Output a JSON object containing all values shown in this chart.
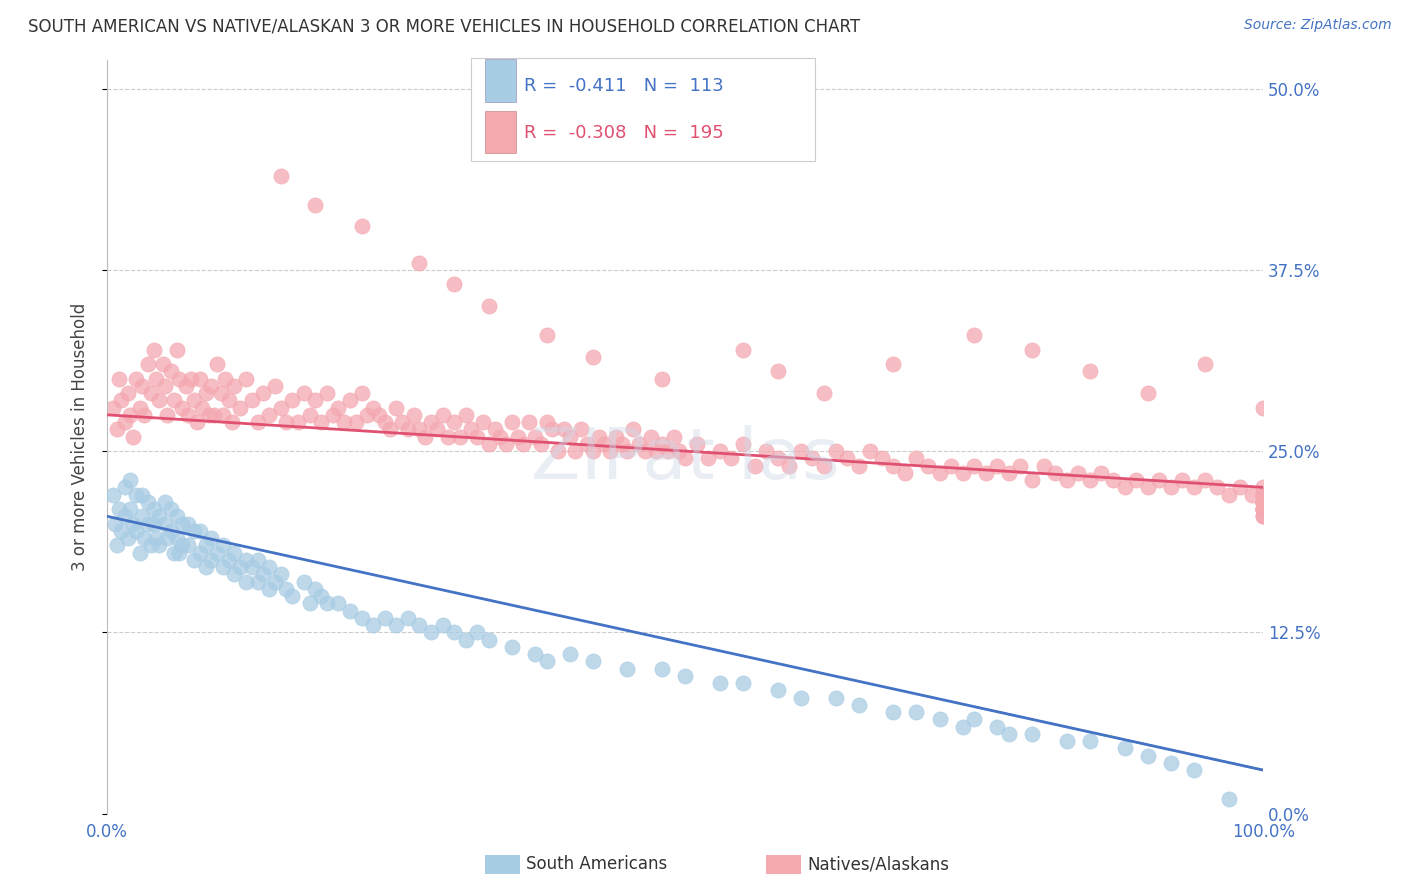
{
  "title": "SOUTH AMERICAN VS NATIVE/ALASKAN 3 OR MORE VEHICLES IN HOUSEHOLD CORRELATION CHART",
  "source": "Source: ZipAtlas.com",
  "ylabel": "3 or more Vehicles in Household",
  "ytick_values": [
    0.0,
    12.5,
    25.0,
    37.5,
    50.0
  ],
  "xlim": [
    0.0,
    100.0
  ],
  "ylim": [
    0.0,
    52.0
  ],
  "legend_blue_r": "-0.411",
  "legend_blue_n": "113",
  "legend_pink_r": "-0.308",
  "legend_pink_n": "195",
  "legend_label_blue": "South Americans",
  "legend_label_pink": "Natives/Alaskans",
  "color_blue": "#a8cce4",
  "color_pink": "#f4a8b0",
  "color_blue_line": "#4472c4",
  "color_pink_line": "#e05070",
  "blue_line_start_y": 20.5,
  "blue_line_end_y": 3.0,
  "pink_line_start_y": 27.5,
  "pink_line_end_y": 22.5,
  "blue_x": [
    0.5,
    0.7,
    0.8,
    1.0,
    1.2,
    1.5,
    1.5,
    1.8,
    2.0,
    2.0,
    2.2,
    2.5,
    2.5,
    2.8,
    3.0,
    3.0,
    3.2,
    3.5,
    3.5,
    3.8,
    4.0,
    4.0,
    4.2,
    4.5,
    4.5,
    5.0,
    5.0,
    5.2,
    5.5,
    5.5,
    5.8,
    6.0,
    6.0,
    6.2,
    6.5,
    6.5,
    7.0,
    7.0,
    7.5,
    7.5,
    8.0,
    8.0,
    8.5,
    8.5,
    9.0,
    9.0,
    9.5,
    10.0,
    10.0,
    10.5,
    11.0,
    11.0,
    11.5,
    12.0,
    12.0,
    12.5,
    13.0,
    13.0,
    13.5,
    14.0,
    14.0,
    14.5,
    15.0,
    15.5,
    16.0,
    17.0,
    17.5,
    18.0,
    18.5,
    19.0,
    20.0,
    21.0,
    22.0,
    23.0,
    24.0,
    25.0,
    26.0,
    27.0,
    28.0,
    29.0,
    30.0,
    31.0,
    32.0,
    33.0,
    35.0,
    37.0,
    38.0,
    40.0,
    42.0,
    45.0,
    48.0,
    50.0,
    53.0,
    55.0,
    58.0,
    60.0,
    63.0,
    65.0,
    68.0,
    70.0,
    72.0,
    74.0,
    75.0,
    77.0,
    78.0,
    80.0,
    83.0,
    85.0,
    88.0,
    90.0,
    92.0,
    94.0,
    97.0
  ],
  "blue_y": [
    22.0,
    20.0,
    18.5,
    21.0,
    19.5,
    22.5,
    20.5,
    19.0,
    23.0,
    21.0,
    20.0,
    22.0,
    19.5,
    18.0,
    22.0,
    20.5,
    19.0,
    21.5,
    20.0,
    18.5,
    21.0,
    20.0,
    19.0,
    20.5,
    18.5,
    21.5,
    20.0,
    19.0,
    21.0,
    19.5,
    18.0,
    20.5,
    19.0,
    18.0,
    20.0,
    18.5,
    20.0,
    18.5,
    19.5,
    17.5,
    19.5,
    18.0,
    18.5,
    17.0,
    19.0,
    17.5,
    18.0,
    18.5,
    17.0,
    17.5,
    18.0,
    16.5,
    17.0,
    17.5,
    16.0,
    17.0,
    17.5,
    16.0,
    16.5,
    17.0,
    15.5,
    16.0,
    16.5,
    15.5,
    15.0,
    16.0,
    14.5,
    15.5,
    15.0,
    14.5,
    14.5,
    14.0,
    13.5,
    13.0,
    13.5,
    13.0,
    13.5,
    13.0,
    12.5,
    13.0,
    12.5,
    12.0,
    12.5,
    12.0,
    11.5,
    11.0,
    10.5,
    11.0,
    10.5,
    10.0,
    10.0,
    9.5,
    9.0,
    9.0,
    8.5,
    8.0,
    8.0,
    7.5,
    7.0,
    7.0,
    6.5,
    6.0,
    6.5,
    6.0,
    5.5,
    5.5,
    5.0,
    5.0,
    4.5,
    4.0,
    3.5,
    3.0,
    1.0
  ],
  "pink_x": [
    0.5,
    0.8,
    1.0,
    1.2,
    1.5,
    1.8,
    2.0,
    2.2,
    2.5,
    2.8,
    3.0,
    3.2,
    3.5,
    3.8,
    4.0,
    4.2,
    4.5,
    4.8,
    5.0,
    5.2,
    5.5,
    5.8,
    6.0,
    6.2,
    6.5,
    6.8,
    7.0,
    7.2,
    7.5,
    7.8,
    8.0,
    8.2,
    8.5,
    8.8,
    9.0,
    9.2,
    9.5,
    9.8,
    10.0,
    10.2,
    10.5,
    10.8,
    11.0,
    11.5,
    12.0,
    12.5,
    13.0,
    13.5,
    14.0,
    14.5,
    15.0,
    15.5,
    16.0,
    16.5,
    17.0,
    17.5,
    18.0,
    18.5,
    19.0,
    19.5,
    20.0,
    20.5,
    21.0,
    21.5,
    22.0,
    22.5,
    23.0,
    23.5,
    24.0,
    24.5,
    25.0,
    25.5,
    26.0,
    26.5,
    27.0,
    27.5,
    28.0,
    28.5,
    29.0,
    29.5,
    30.0,
    30.5,
    31.0,
    31.5,
    32.0,
    32.5,
    33.0,
    33.5,
    34.0,
    34.5,
    35.0,
    35.5,
    36.0,
    36.5,
    37.0,
    37.5,
    38.0,
    38.5,
    39.0,
    39.5,
    40.0,
    40.5,
    41.0,
    41.5,
    42.0,
    42.5,
    43.0,
    43.5,
    44.0,
    44.5,
    45.0,
    45.5,
    46.0,
    46.5,
    47.0,
    47.5,
    48.0,
    48.5,
    49.0,
    49.5,
    50.0,
    51.0,
    52.0,
    53.0,
    54.0,
    55.0,
    56.0,
    57.0,
    58.0,
    59.0,
    60.0,
    61.0,
    62.0,
    63.0,
    64.0,
    65.0,
    66.0,
    67.0,
    68.0,
    69.0,
    70.0,
    71.0,
    72.0,
    73.0,
    74.0,
    75.0,
    76.0,
    77.0,
    78.0,
    79.0,
    80.0,
    81.0,
    82.0,
    83.0,
    84.0,
    85.0,
    86.0,
    87.0,
    88.0,
    89.0,
    90.0,
    91.0,
    92.0,
    93.0,
    94.0,
    95.0,
    96.0,
    97.0,
    98.0,
    99.0,
    100.0,
    100.5,
    101.0,
    101.5,
    102.0,
    102.5,
    103.0,
    103.5,
    104.0,
    104.5,
    105.0,
    105.5,
    106.0,
    106.5,
    107.0,
    107.5,
    108.0,
    108.5,
    109.0,
    109.5,
    110.0
  ],
  "pink_y": [
    28.0,
    26.5,
    30.0,
    28.5,
    27.0,
    29.0,
    27.5,
    26.0,
    30.0,
    28.0,
    29.5,
    27.5,
    31.0,
    29.0,
    32.0,
    30.0,
    28.5,
    31.0,
    29.5,
    27.5,
    30.5,
    28.5,
    32.0,
    30.0,
    28.0,
    29.5,
    27.5,
    30.0,
    28.5,
    27.0,
    30.0,
    28.0,
    29.0,
    27.5,
    29.5,
    27.5,
    31.0,
    29.0,
    27.5,
    30.0,
    28.5,
    27.0,
    29.5,
    28.0,
    30.0,
    28.5,
    27.0,
    29.0,
    27.5,
    29.5,
    28.0,
    27.0,
    28.5,
    27.0,
    29.0,
    27.5,
    28.5,
    27.0,
    29.0,
    27.5,
    28.0,
    27.0,
    28.5,
    27.0,
    29.0,
    27.5,
    28.0,
    27.5,
    27.0,
    26.5,
    28.0,
    27.0,
    26.5,
    27.5,
    26.5,
    26.0,
    27.0,
    26.5,
    27.5,
    26.0,
    27.0,
    26.0,
    27.5,
    26.5,
    26.0,
    27.0,
    25.5,
    26.5,
    26.0,
    25.5,
    27.0,
    26.0,
    25.5,
    27.0,
    26.0,
    25.5,
    27.0,
    26.5,
    25.0,
    26.5,
    26.0,
    25.0,
    26.5,
    25.5,
    25.0,
    26.0,
    25.5,
    25.0,
    26.0,
    25.5,
    25.0,
    26.5,
    25.5,
    25.0,
    26.0,
    25.0,
    25.5,
    25.0,
    26.0,
    25.0,
    24.5,
    25.5,
    24.5,
    25.0,
    24.5,
    25.5,
    24.0,
    25.0,
    24.5,
    24.0,
    25.0,
    24.5,
    24.0,
    25.0,
    24.5,
    24.0,
    25.0,
    24.5,
    24.0,
    23.5,
    24.5,
    24.0,
    23.5,
    24.0,
    23.5,
    24.0,
    23.5,
    24.0,
    23.5,
    24.0,
    23.0,
    24.0,
    23.5,
    23.0,
    23.5,
    23.0,
    23.5,
    23.0,
    22.5,
    23.0,
    22.5,
    23.0,
    22.5,
    23.0,
    22.5,
    23.0,
    22.5,
    22.0,
    22.5,
    22.0,
    22.5,
    22.0,
    21.5,
    22.0,
    21.5,
    22.0,
    21.5,
    22.0,
    21.5,
    22.0,
    21.5,
    21.0,
    21.5,
    21.0,
    21.5,
    21.0,
    21.5,
    21.0,
    20.5,
    21.0,
    20.5
  ],
  "extra_pink_high_x": [
    15.0,
    18.0,
    22.0,
    27.0,
    30.0,
    33.0,
    38.0,
    42.0,
    48.0,
    55.0,
    58.0,
    62.0,
    68.0,
    75.0,
    80.0,
    85.0,
    90.0,
    95.0,
    100.0
  ],
  "extra_pink_high_y": [
    44.0,
    42.0,
    40.5,
    38.0,
    36.5,
    35.0,
    33.0,
    31.5,
    30.0,
    32.0,
    30.5,
    29.0,
    31.0,
    33.0,
    32.0,
    30.5,
    29.0,
    31.0,
    28.0
  ],
  "watermark_text": "ZIPat las"
}
